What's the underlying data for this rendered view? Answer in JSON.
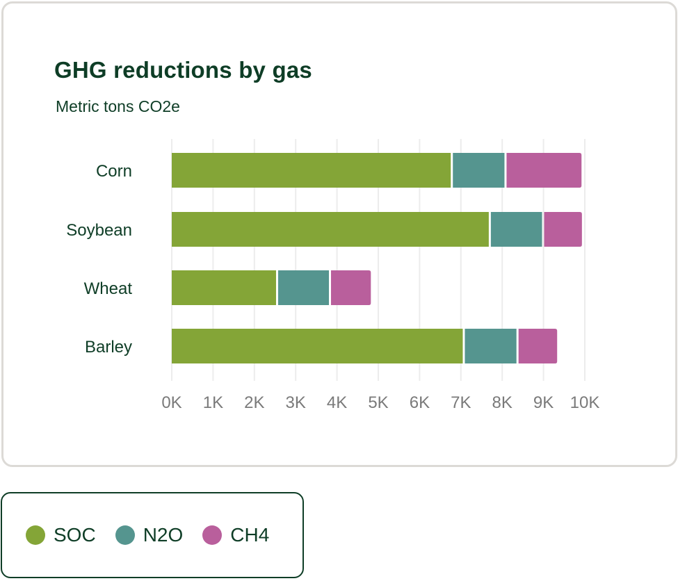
{
  "chart_data": {
    "type": "bar",
    "orientation": "horizontal",
    "stacked": true,
    "title": "GHG reductions by gas",
    "subtitle": "Metric tons CO2e",
    "categories": [
      "Corn",
      "Soybean",
      "Wheat",
      "Barley"
    ],
    "series": [
      {
        "name": "SOC",
        "color": "#84a537",
        "values": [
          6780,
          7700,
          2550,
          7070
        ]
      },
      {
        "name": "N2O",
        "color": "#55958f",
        "values": [
          1300,
          1290,
          1280,
          1300
        ]
      },
      {
        "name": "CH4",
        "color": "#b95f9c",
        "values": [
          1840,
          940,
          990,
          960
        ]
      }
    ],
    "xlim": [
      0,
      10000
    ],
    "xticks": [
      0,
      1000,
      2000,
      3000,
      4000,
      5000,
      6000,
      7000,
      8000,
      9000,
      10000
    ],
    "xtick_labels": [
      "0K",
      "1K",
      "2K",
      "3K",
      "4K",
      "5K",
      "6K",
      "7K",
      "8K",
      "9K",
      "10K"
    ],
    "grid": true,
    "legend_position": "bottom-left"
  }
}
